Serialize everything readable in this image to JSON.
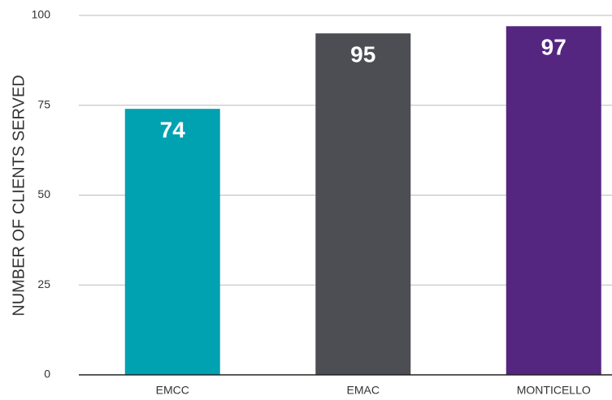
{
  "chart_data": {
    "type": "bar",
    "y_label": "NUMBER OF CLIENTS SERVED",
    "categories": [
      "EMCC",
      "EMAC",
      "MONTICELLO"
    ],
    "values": [
      74,
      95,
      97
    ],
    "colors": [
      "#00a1b1",
      "#4d4e53",
      "#55267f"
    ],
    "ylim": [
      0,
      100
    ],
    "yticks": [
      0,
      25,
      50,
      75,
      100
    ],
    "grid": true
  }
}
